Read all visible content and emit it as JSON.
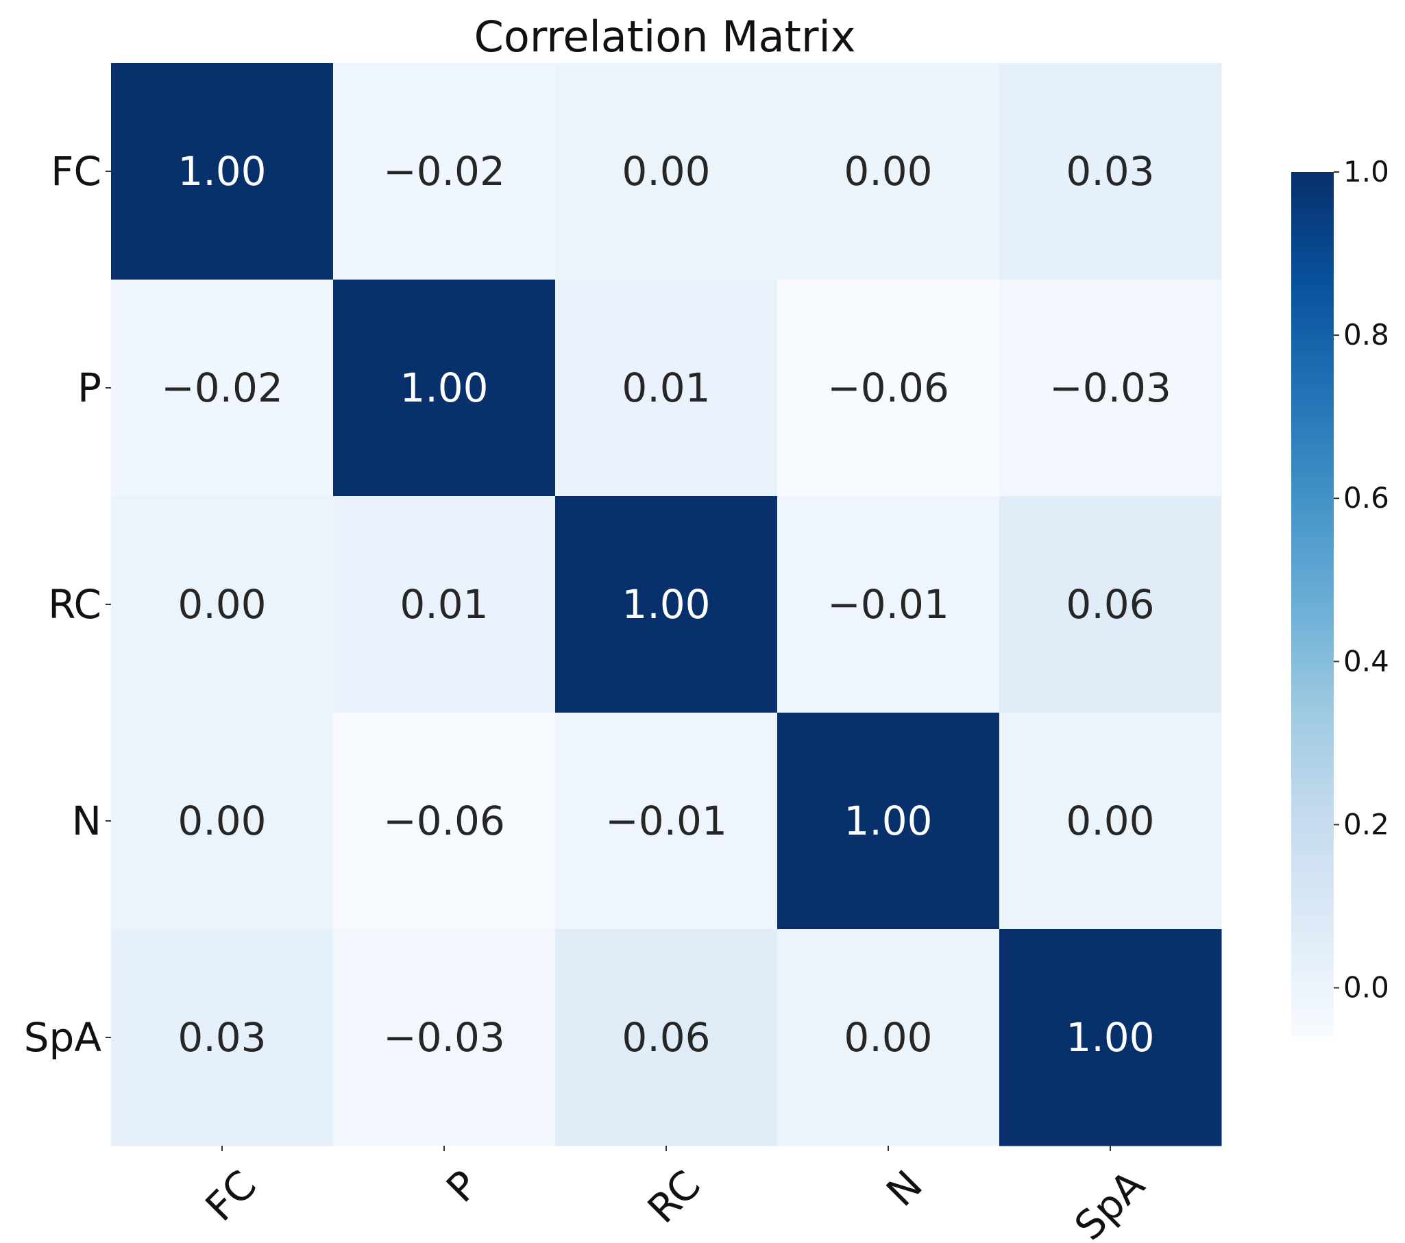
{
  "chart_data": {
    "type": "heatmap",
    "title": "Correlation Matrix",
    "row_labels": [
      "FC",
      "P",
      "RC",
      "N",
      "SpA"
    ],
    "col_labels": [
      "FC",
      "P",
      "RC",
      "N",
      "SpA"
    ],
    "values": [
      [
        1.0,
        -0.02,
        0.0,
        0.0,
        0.03
      ],
      [
        -0.02,
        1.0,
        0.01,
        -0.06,
        -0.03
      ],
      [
        0.0,
        0.01,
        1.0,
        -0.01,
        0.06
      ],
      [
        0.0,
        -0.06,
        -0.01,
        1.0,
        0.0
      ],
      [
        0.03,
        -0.03,
        0.06,
        0.0,
        1.0
      ]
    ],
    "value_format": "0.00",
    "colormap": "Blues",
    "colorbar": {
      "range": [
        -0.06,
        1.0
      ],
      "ticks": [
        0.0,
        0.2,
        0.4,
        0.6,
        0.8,
        1.0
      ],
      "tick_labels": [
        "0.0",
        "0.2",
        "0.4",
        "0.6",
        "0.8",
        "1.0"
      ]
    }
  }
}
